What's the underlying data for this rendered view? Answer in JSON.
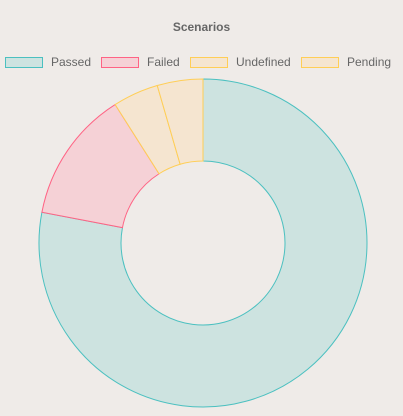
{
  "chart_data": {
    "type": "pie",
    "subtype": "doughnut",
    "title": "Scenarios",
    "legend_position": "top",
    "categories": [
      "Passed",
      "Failed",
      "Undefined",
      "Pending"
    ],
    "values": [
      78,
      13,
      4.5,
      4.5
    ],
    "colors": {
      "Passed": {
        "fill": "#cde3e0",
        "stroke": "#4bc0c0"
      },
      "Failed": {
        "fill": "#f5d1d6",
        "stroke": "#ff6384"
      },
      "Undefined": {
        "fill": "#f5e5d0",
        "stroke": "#ffce56"
      },
      "Pending": {
        "fill": "#f5e5d0",
        "stroke": "#ffce56"
      }
    }
  }
}
